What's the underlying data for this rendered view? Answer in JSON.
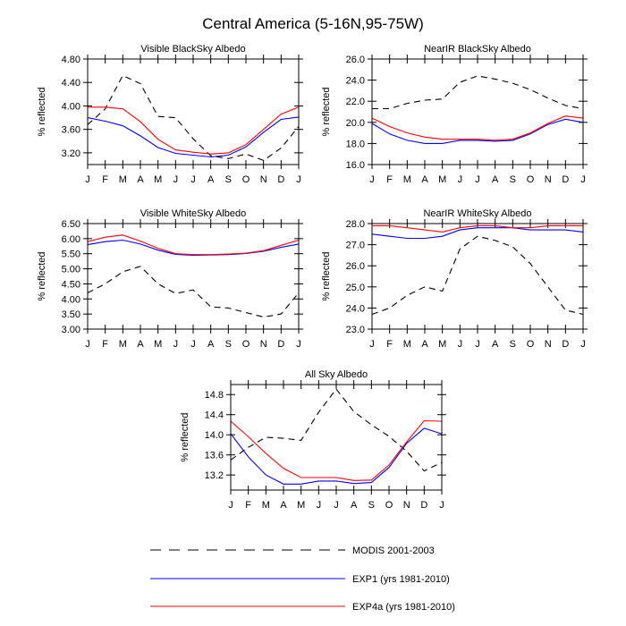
{
  "main_title": "Central America (5-16N,95-75W)",
  "months": [
    "J",
    "F",
    "M",
    "A",
    "M",
    "J",
    "J",
    "A",
    "S",
    "O",
    "N",
    "D",
    "J"
  ],
  "colors": {
    "modis": "#000000",
    "exp1": "#0000ff",
    "exp4a": "#ff0000"
  },
  "legend": [
    {
      "series": "modis",
      "label": "MODIS 2001-2003",
      "dash": true
    },
    {
      "series": "exp1",
      "label": "EXP1 (yrs 1981-2010)",
      "dash": false
    },
    {
      "series": "exp4a",
      "label": "EXP4a (yrs 1981-2010)",
      "dash": false
    }
  ],
  "chart_data": [
    {
      "type": "line",
      "title": "Visible BlackSky Albedo",
      "ylabel": "% reflected",
      "ylim": [
        3.0,
        4.8
      ],
      "yticks": [
        "3.20",
        "3.60",
        "4.00",
        "4.40",
        "4.80"
      ],
      "categories": [
        "J",
        "F",
        "M",
        "A",
        "M",
        "J",
        "J",
        "A",
        "S",
        "O",
        "N",
        "D",
        "J"
      ],
      "series": [
        {
          "name": "MODIS 2001-2003",
          "key": "modis",
          "values": [
            3.68,
            3.95,
            4.52,
            4.38,
            3.82,
            3.8,
            3.44,
            3.15,
            3.1,
            3.18,
            3.07,
            3.28,
            3.65
          ]
        },
        {
          "name": "EXP1 (yrs 1981-2010)",
          "key": "exp1",
          "values": [
            3.8,
            3.74,
            3.66,
            3.49,
            3.29,
            3.19,
            3.16,
            3.13,
            3.16,
            3.3,
            3.55,
            3.77,
            3.81
          ]
        },
        {
          "name": "EXP4a (yrs 1981-2010)",
          "key": "exp4a",
          "values": [
            3.98,
            3.98,
            3.95,
            3.73,
            3.43,
            3.25,
            3.21,
            3.18,
            3.2,
            3.34,
            3.6,
            3.86,
            3.98
          ]
        }
      ]
    },
    {
      "type": "line",
      "title": "NearIR BlackSky Albedo",
      "ylabel": "% reflected",
      "ylim": [
        16.0,
        26.0
      ],
      "yticks": [
        "16.0",
        "18.0",
        "20.0",
        "22.0",
        "24.0",
        "26.0"
      ],
      "categories": [
        "J",
        "F",
        "M",
        "A",
        "M",
        "J",
        "J",
        "A",
        "S",
        "O",
        "N",
        "D",
        "J"
      ],
      "series": [
        {
          "name": "MODIS 2001-2003",
          "key": "modis",
          "values": [
            21.3,
            21.3,
            21.8,
            22.1,
            22.2,
            23.8,
            24.4,
            24.1,
            23.7,
            23.1,
            22.3,
            21.6,
            21.3
          ]
        },
        {
          "name": "EXP1 (yrs 1981-2010)",
          "key": "exp1",
          "values": [
            19.9,
            18.9,
            18.3,
            18.0,
            18.0,
            18.3,
            18.3,
            18.2,
            18.3,
            18.9,
            19.8,
            20.3,
            20.0
          ]
        },
        {
          "name": "EXP4a (yrs 1981-2010)",
          "key": "exp4a",
          "values": [
            20.4,
            19.6,
            19.0,
            18.6,
            18.4,
            18.4,
            18.4,
            18.3,
            18.4,
            19.0,
            19.9,
            20.6,
            20.4
          ]
        }
      ]
    },
    {
      "type": "line",
      "title": "Visible WhiteSky Albedo",
      "ylabel": "% reflected",
      "ylim": [
        3.0,
        6.5
      ],
      "yticks": [
        "3.00",
        "3.50",
        "4.00",
        "4.50",
        "5.00",
        "5.50",
        "6.00",
        "6.50"
      ],
      "categories": [
        "J",
        "F",
        "M",
        "A",
        "M",
        "J",
        "J",
        "A",
        "S",
        "O",
        "N",
        "D",
        "J"
      ],
      "series": [
        {
          "name": "MODIS 2001-2003",
          "key": "modis",
          "values": [
            4.2,
            4.5,
            4.9,
            5.08,
            4.5,
            4.18,
            4.3,
            3.74,
            3.7,
            3.55,
            3.4,
            3.5,
            4.2
          ]
        },
        {
          "name": "EXP1 (yrs 1981-2010)",
          "key": "exp1",
          "values": [
            5.8,
            5.9,
            5.95,
            5.82,
            5.62,
            5.48,
            5.45,
            5.46,
            5.47,
            5.51,
            5.58,
            5.71,
            5.82
          ]
        },
        {
          "name": "EXP4a (yrs 1981-2010)",
          "key": "exp4a",
          "values": [
            5.9,
            6.05,
            6.12,
            5.92,
            5.68,
            5.5,
            5.47,
            5.47,
            5.49,
            5.52,
            5.6,
            5.78,
            5.95
          ]
        }
      ]
    },
    {
      "type": "line",
      "title": "NearIR WhiteSky Albedo",
      "ylabel": "% reflected",
      "ylim": [
        23.0,
        28.0
      ],
      "yticks": [
        "23.0",
        "24.0",
        "25.0",
        "26.0",
        "27.0",
        "28.0"
      ],
      "categories": [
        "J",
        "F",
        "M",
        "A",
        "M",
        "J",
        "J",
        "A",
        "S",
        "O",
        "N",
        "D",
        "J"
      ],
      "series": [
        {
          "name": "MODIS 2001-2003",
          "key": "modis",
          "values": [
            23.7,
            24.0,
            24.6,
            25.0,
            24.8,
            26.8,
            27.4,
            27.2,
            26.9,
            26.1,
            25.0,
            23.9,
            23.7
          ]
        },
        {
          "name": "EXP1 (yrs 1981-2010)",
          "key": "exp1",
          "values": [
            27.5,
            27.4,
            27.3,
            27.3,
            27.4,
            27.7,
            27.8,
            27.8,
            27.8,
            27.7,
            27.7,
            27.7,
            27.6
          ]
        },
        {
          "name": "EXP4a (yrs 1981-2010)",
          "key": "exp4a",
          "values": [
            27.9,
            27.9,
            27.8,
            27.7,
            27.6,
            27.8,
            27.9,
            27.9,
            27.8,
            27.8,
            27.9,
            27.9,
            27.9
          ]
        }
      ]
    },
    {
      "type": "line",
      "title": "All Sky Albedo",
      "ylabel": "% reflected",
      "ylim": [
        12.9,
        15.0
      ],
      "yticks": [
        "13.2",
        "13.6",
        "14.0",
        "14.4",
        "14.8"
      ],
      "categories": [
        "J",
        "F",
        "M",
        "A",
        "M",
        "J",
        "J",
        "A",
        "S",
        "O",
        "N",
        "D",
        "J"
      ],
      "series": [
        {
          "name": "MODIS 2001-2003",
          "key": "modis",
          "values": [
            13.5,
            13.75,
            13.95,
            13.93,
            13.89,
            14.45,
            14.91,
            14.46,
            14.2,
            13.97,
            13.67,
            13.28,
            13.45
          ]
        },
        {
          "name": "EXP1 (yrs 1981-2010)",
          "key": "exp1",
          "values": [
            14.02,
            13.56,
            13.2,
            13.02,
            13.02,
            13.08,
            13.08,
            13.03,
            13.05,
            13.35,
            13.83,
            14.13,
            14.02
          ]
        },
        {
          "name": "EXP4a (yrs 1981-2010)",
          "key": "exp4a",
          "values": [
            14.27,
            13.96,
            13.63,
            13.33,
            13.15,
            13.15,
            13.15,
            13.09,
            13.1,
            13.4,
            13.86,
            14.28,
            14.27
          ]
        }
      ]
    }
  ]
}
